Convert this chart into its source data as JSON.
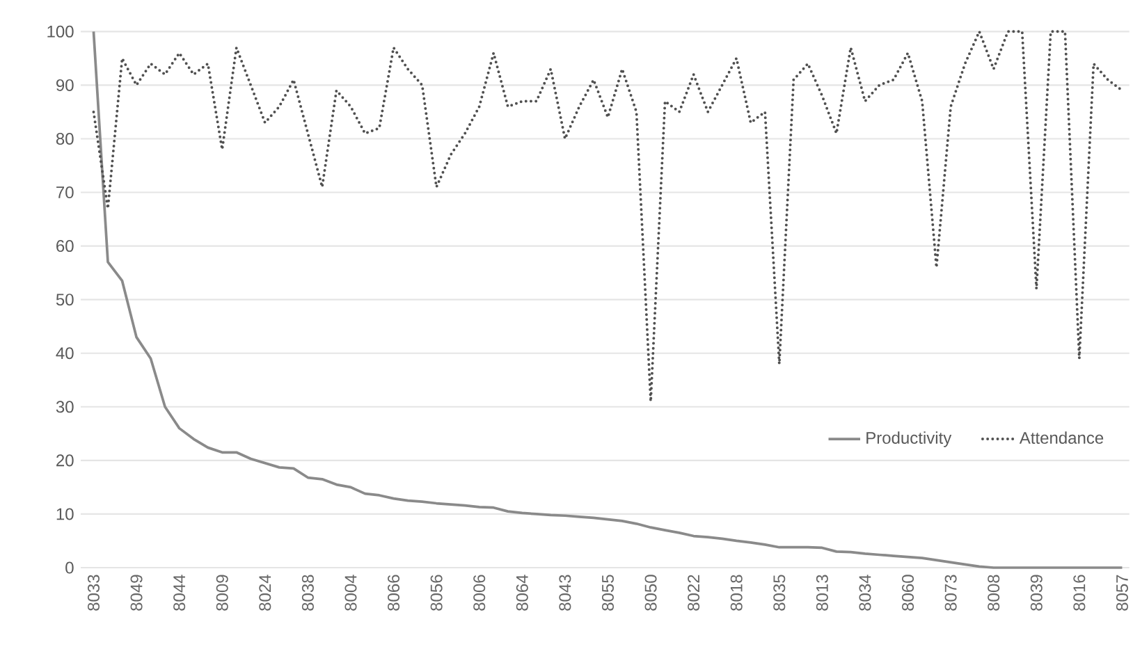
{
  "chart_data": {
    "type": "line",
    "categories": [
      "8033",
      null,
      null,
      "8049",
      null,
      null,
      "8044",
      null,
      null,
      "8009",
      null,
      null,
      "8024",
      null,
      null,
      "8038",
      null,
      null,
      "8004",
      null,
      null,
      "8066",
      null,
      null,
      "8056",
      null,
      null,
      "8006",
      null,
      null,
      "8064",
      null,
      null,
      "8043",
      null,
      null,
      "8055",
      null,
      null,
      "8050",
      null,
      null,
      "8022",
      null,
      null,
      "8018",
      null,
      null,
      "8035",
      null,
      null,
      "8013",
      null,
      null,
      "8034",
      null,
      null,
      "8060",
      null,
      null,
      "8073",
      null,
      null,
      "8008",
      null,
      null,
      "8039",
      null,
      null,
      "8016",
      null,
      null,
      "8057"
    ],
    "series": [
      {
        "name": "Productivity",
        "color": "#8a8a8a",
        "line_style": "solid",
        "values": [
          100,
          57,
          53.5,
          43,
          39,
          30,
          26,
          24,
          22.4,
          21.5,
          21.5,
          20.3,
          19.5,
          18.7,
          18.5,
          16.8,
          16.5,
          15.5,
          15,
          13.8,
          13.5,
          12.9,
          12.5,
          12.3,
          12,
          11.8,
          11.6,
          11.3,
          11.2,
          10.5,
          10.2,
          10,
          9.8,
          9.7,
          9.5,
          9.3,
          9,
          8.7,
          8.2,
          7.5,
          7,
          6.5,
          5.9,
          5.7,
          5.4,
          5,
          4.7,
          4.3,
          3.8,
          3.8,
          3.8,
          3.7,
          3,
          2.9,
          2.6,
          2.4,
          2.2,
          2,
          1.8,
          1.4,
          1,
          0.6,
          0.2,
          0,
          0,
          0,
          0,
          0,
          0,
          0,
          0,
          0,
          0
        ]
      },
      {
        "name": "Attendance",
        "color": "#505050",
        "line_style": "dotted",
        "values": [
          85,
          67,
          95,
          90,
          94,
          92,
          96,
          92,
          94,
          78,
          97,
          90,
          83,
          86,
          91,
          81,
          71,
          89,
          86,
          81,
          82,
          97,
          93,
          90,
          71,
          77,
          81,
          86,
          96,
          86,
          87,
          87,
          93,
          80,
          86,
          91,
          84,
          93,
          85,
          31,
          87,
          85,
          92,
          85,
          90,
          95,
          83,
          85,
          38,
          91,
          94,
          88,
          81,
          97,
          87,
          90,
          91,
          96,
          87,
          56,
          86,
          94,
          100,
          93,
          100,
          100,
          52,
          100,
          100,
          39,
          94,
          91,
          89
        ]
      }
    ],
    "ylim": [
      0,
      100
    ],
    "yticks": [
      0,
      10,
      20,
      30,
      40,
      50,
      60,
      70,
      80,
      90,
      100
    ],
    "grid": "y",
    "legend": "right"
  }
}
